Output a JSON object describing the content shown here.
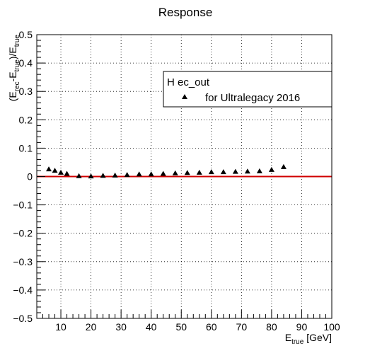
{
  "chart_data": {
    "type": "scatter",
    "title": "Response",
    "xlabel": {
      "base": "E",
      "sub": "true",
      "rest": " [GeV]"
    },
    "ylabel": {
      "parts": [
        {
          "t": "(E"
        },
        {
          "t": "rec",
          "sub": true
        },
        {
          "t": "-E"
        },
        {
          "t": "true",
          "sub": true
        },
        {
          "t": ")/E"
        },
        {
          "t": "true",
          "sub": true
        }
      ]
    },
    "xlim": [
      2,
      100
    ],
    "ylim": [
      -0.5,
      0.5
    ],
    "xticks": [
      10,
      20,
      30,
      40,
      50,
      60,
      70,
      80,
      90,
      100
    ],
    "xtick_labels": [
      "10",
      "20",
      "30",
      "40",
      "50",
      "60",
      "70",
      "80",
      "90",
      "100"
    ],
    "yticks": [
      -0.5,
      -0.4,
      -0.3,
      -0.2,
      -0.1,
      0,
      0.1,
      0.2,
      0.3,
      0.4,
      0.5
    ],
    "ytick_labels": [
      "−0.5",
      "−0.4",
      "−0.3",
      "−0.2",
      "−0.1",
      "0",
      "0.1",
      "0.2",
      "0.3",
      "0.4",
      "0.5"
    ],
    "grid": true,
    "reference_line": {
      "y": 0,
      "color": "#d00000"
    },
    "legend": {
      "placement": "top-right",
      "header": "H ec_out",
      "entries": [
        {
          "marker": "triangle",
          "label": "for Ultralegacy 2016"
        }
      ]
    },
    "series": [
      {
        "marker": "triangle",
        "color": "#000000",
        "x": [
          6,
          8,
          10,
          12,
          16,
          20,
          24,
          28,
          32,
          36,
          40,
          44,
          48,
          52,
          56,
          60,
          64,
          68,
          72,
          76,
          80,
          84
        ],
        "y": [
          0.026,
          0.021,
          0.014,
          0.01,
          0.002,
          0.001,
          0.003,
          0.004,
          0.006,
          0.008,
          0.008,
          0.01,
          0.012,
          0.013,
          0.014,
          0.016,
          0.016,
          0.017,
          0.018,
          0.019,
          0.024,
          0.034
        ]
      }
    ]
  }
}
